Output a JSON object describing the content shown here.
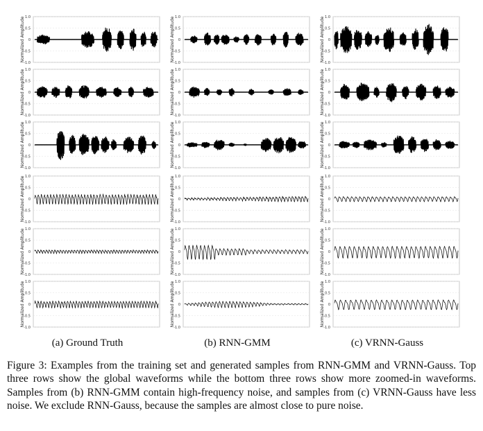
{
  "figure": {
    "columns": [
      {
        "id": "a",
        "label": "(a) Ground Truth"
      },
      {
        "id": "b",
        "label": "(b) RNN-GMM"
      },
      {
        "id": "c",
        "label": "(c) VRNN-Gauss"
      }
    ],
    "y_axis_label": "Normalized Amplitude",
    "y_ticks": [
      "1.0",
      "0.5",
      "0",
      "-0.5",
      "-1.0"
    ],
    "rows": [
      {
        "kind": "global"
      },
      {
        "kind": "global"
      },
      {
        "kind": "global"
      },
      {
        "kind": "zoomed"
      },
      {
        "kind": "zoomed"
      },
      {
        "kind": "zoomed"
      }
    ]
  },
  "caption": {
    "text": "Figure 3: Examples from the training set and generated samples from RNN-GMM and VRNN-Gauss. Top three rows show the global waveforms while the bottom three rows show more zoomed-in waveforms. Samples from (b) RNN-GMM contain high-frequency noise, and samples from (c) VRNN-Gauss have less noise. We exclude RNN-Gauss, because the samples are almost close to pure noise."
  }
}
